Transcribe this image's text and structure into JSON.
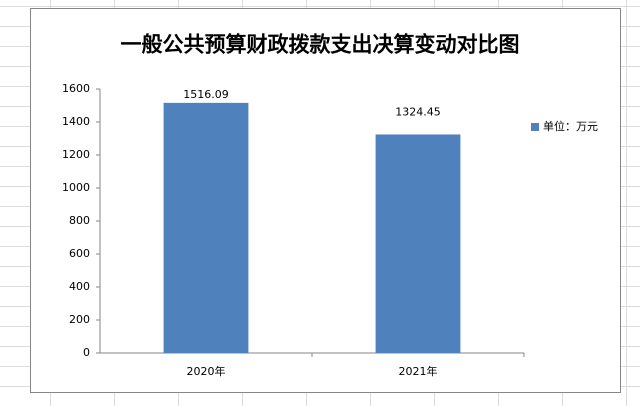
{
  "chart_data": {
    "type": "bar",
    "title": "一般公共预算财政拨款支出决算变动对比图",
    "categories": [
      "2020年",
      "2021年"
    ],
    "series": [
      {
        "name": "单位：万元",
        "color": "#4f81bd",
        "values": [
          1516.09,
          1324.45
        ]
      }
    ],
    "ylim": [
      0,
      1600
    ],
    "yticks": [
      0,
      200,
      400,
      600,
      800,
      1000,
      1200,
      1400,
      1600
    ],
    "grid": true,
    "legend": "right",
    "data_labels": true
  }
}
